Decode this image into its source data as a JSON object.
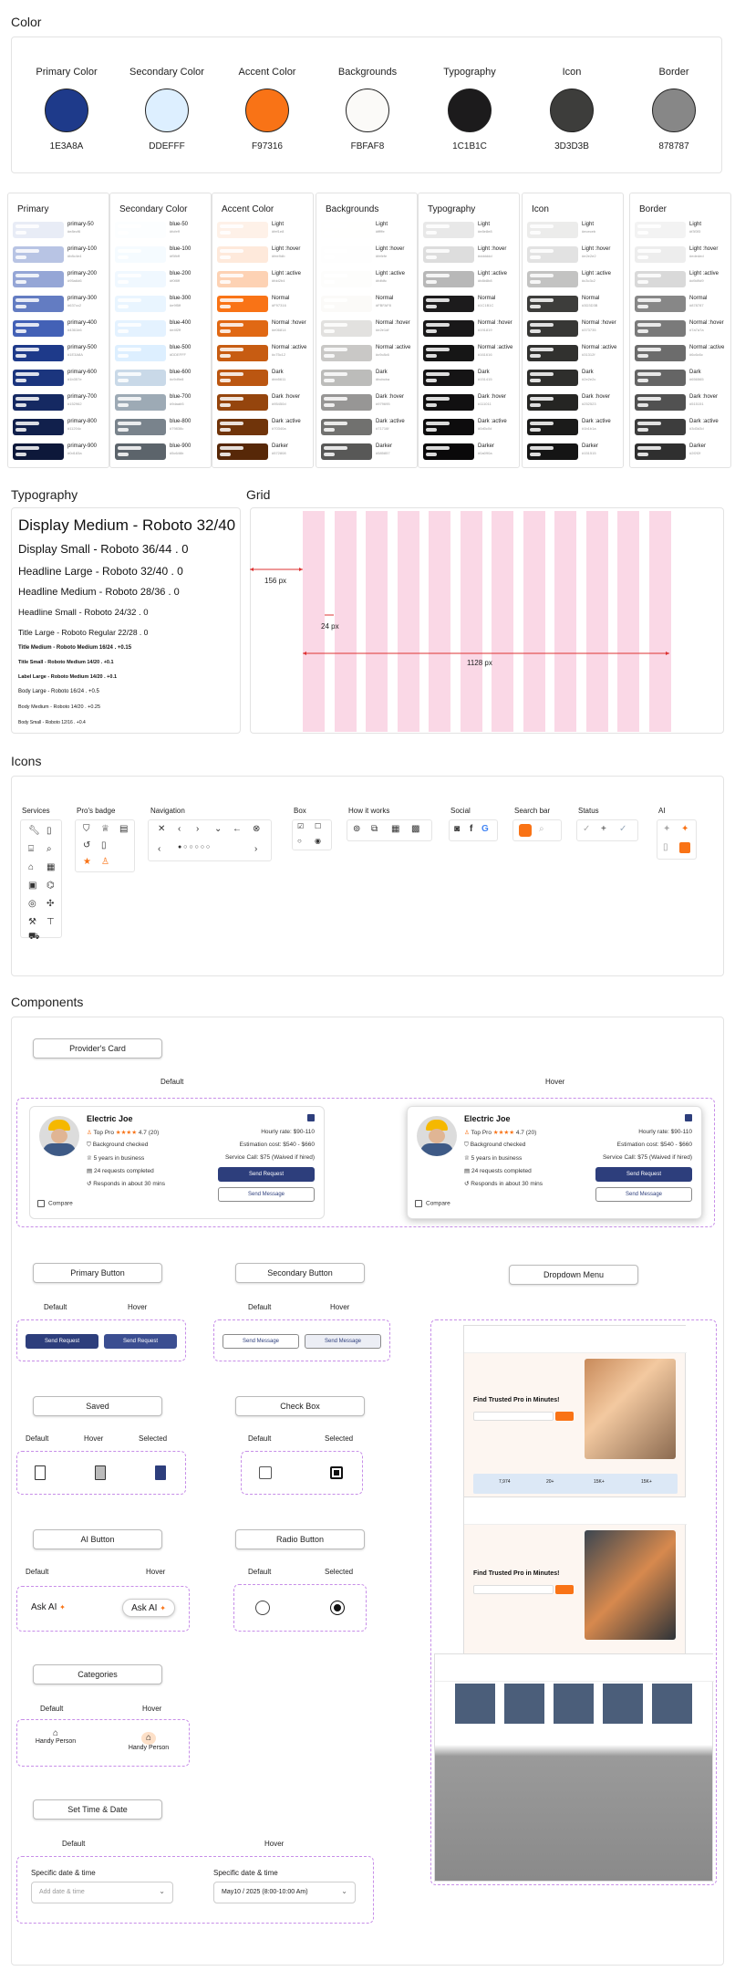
{
  "sections": {
    "color": "Color",
    "typography": "Typography",
    "grid": "Grid",
    "icons": "Icons",
    "components": "Components"
  },
  "swatches": [
    {
      "name": "Primary Color",
      "hex": "1E3A8A",
      "color": "#1E3A8A"
    },
    {
      "name": "Secondary Color",
      "hex": "DDEFFF",
      "color": "#DDEFFF"
    },
    {
      "name": "Accent Color",
      "hex": "F97316",
      "color": "#F97316"
    },
    {
      "name": "Backgrounds",
      "hex": "FBFAF8",
      "color": "#FBFAF8"
    },
    {
      "name": "Typography",
      "hex": "1C1B1C",
      "color": "#1C1B1C"
    },
    {
      "name": "Icon",
      "hex": "3D3D3B",
      "color": "#3D3D3B"
    },
    {
      "name": "Border",
      "hex": "878787",
      "color": "#878787"
    }
  ],
  "palettes": [
    {
      "title": "Primary",
      "rows": [
        {
          "label": "primary-50",
          "color": "#e8ecf6"
        },
        {
          "label": "primary-100",
          "color": "#b8c4e4"
        },
        {
          "label": "primary-200",
          "color": "#95a6d6"
        },
        {
          "label": "primary-300",
          "color": "#637cc2"
        },
        {
          "label": "primary-400",
          "color": "#4361b6"
        },
        {
          "label": "primary-500",
          "color": "#1E3A8A"
        },
        {
          "label": "primary-600",
          "color": "#1b357e"
        },
        {
          "label": "primary-700",
          "color": "#152962"
        },
        {
          "label": "primary-800",
          "color": "#11204c"
        },
        {
          "label": "primary-900",
          "color": "#0d183a"
        }
      ]
    },
    {
      "title": "Secondary Color",
      "rows": [
        {
          "label": "blue-50",
          "color": "#fcfeff"
        },
        {
          "label": "blue-100",
          "color": "#f5fbff"
        },
        {
          "label": "blue-200",
          "color": "#f0f8ff"
        },
        {
          "label": "blue-300",
          "color": "#e9f5ff"
        },
        {
          "label": "blue-400",
          "color": "#e4f2ff"
        },
        {
          "label": "blue-500",
          "color": "#DDEFFF"
        },
        {
          "label": "blue-600",
          "color": "#c9d9e8"
        },
        {
          "label": "blue-700",
          "color": "#9daab5"
        },
        {
          "label": "blue-800",
          "color": "#79838c"
        },
        {
          "label": "blue-900",
          "color": "#5c646b"
        }
      ]
    },
    {
      "title": "Accent Color",
      "rows": [
        {
          "label": "Light",
          "color": "#fef1e8"
        },
        {
          "label": "Light :hover",
          "color": "#fee9db"
        },
        {
          "label": "Light :active",
          "color": "#fdd2b4"
        },
        {
          "label": "Normal",
          "color": "#F97316"
        },
        {
          "label": "Normal :hover",
          "color": "#e06814"
        },
        {
          "label": "Normal :active",
          "color": "#c75c12"
        },
        {
          "label": "Dark",
          "color": "#bb5611"
        },
        {
          "label": "Dark :hover",
          "color": "#95450d"
        },
        {
          "label": "Dark :active",
          "color": "#70340a"
        },
        {
          "label": "Darker",
          "color": "#572808"
        }
      ]
    },
    {
      "title": "Backgrounds",
      "rows": [
        {
          "label": "Light",
          "color": "#fffffe"
        },
        {
          "label": "Light :hover",
          "color": "#fefefe"
        },
        {
          "label": "Light :active",
          "color": "#fdfdfc"
        },
        {
          "label": "Normal",
          "color": "#FBFAF8"
        },
        {
          "label": "Normal :hover",
          "color": "#e2e1df"
        },
        {
          "label": "Normal :active",
          "color": "#c9c8c6"
        },
        {
          "label": "Dark",
          "color": "#bcbcba"
        },
        {
          "label": "Dark :hover",
          "color": "#979695"
        },
        {
          "label": "Dark :active",
          "color": "#71716f"
        },
        {
          "label": "Darker",
          "color": "#585857"
        }
      ]
    },
    {
      "title": "Typography",
      "rows": [
        {
          "label": "Light",
          "color": "#e8e8e8"
        },
        {
          "label": "Light :hover",
          "color": "#dddddd"
        },
        {
          "label": "Light :active",
          "color": "#b8b8b8"
        },
        {
          "label": "Normal",
          "color": "#1C1B1C"
        },
        {
          "label": "Normal :hover",
          "color": "#191819"
        },
        {
          "label": "Normal :active",
          "color": "#161616"
        },
        {
          "label": "Dark",
          "color": "#151415"
        },
        {
          "label": "Dark :hover",
          "color": "#111011"
        },
        {
          "label": "Dark :active",
          "color": "#0d0c0d"
        },
        {
          "label": "Darker",
          "color": "#0a090a"
        }
      ]
    },
    {
      "title": "Icon",
      "rows": [
        {
          "label": "Light",
          "color": "#ececeb"
        },
        {
          "label": "Light :hover",
          "color": "#e2e2e2"
        },
        {
          "label": "Light :active",
          "color": "#c3c3c2"
        },
        {
          "label": "Normal",
          "color": "#3D3D3B"
        },
        {
          "label": "Normal :hover",
          "color": "#373735"
        },
        {
          "label": "Normal :active",
          "color": "#31312f"
        },
        {
          "label": "Dark",
          "color": "#2e2e2c"
        },
        {
          "label": "Dark :hover",
          "color": "#252523"
        },
        {
          "label": "Dark :active",
          "color": "#1b1b1a"
        },
        {
          "label": "Darker",
          "color": "#151515"
        }
      ]
    },
    {
      "title": "Border",
      "rows": [
        {
          "label": "Light",
          "color": "#f3f3f3"
        },
        {
          "label": "Light :hover",
          "color": "#ededed"
        },
        {
          "label": "Light :active",
          "color": "#d9d9d9"
        },
        {
          "label": "Normal",
          "color": "#878787"
        },
        {
          "label": "Normal :hover",
          "color": "#7a7a7a"
        },
        {
          "label": "Normal :active",
          "color": "#6c6c6c"
        },
        {
          "label": "Dark",
          "color": "#656565"
        },
        {
          "label": "Dark :hover",
          "color": "#515151"
        },
        {
          "label": "Dark :active",
          "color": "#3d3d3d"
        },
        {
          "label": "Darker",
          "color": "#2f2f2f"
        }
      ]
    }
  ],
  "typography": [
    "Display Medium - Roboto 32/40",
    "Display Small - Roboto 36/44 . 0",
    "Headline Large - Roboto 32/40 . 0",
    "Headline Medium - Roboto 28/36 . 0",
    "Headline Small - Roboto 24/32 . 0",
    "Title Large - Roboto Regular 22/28 . 0",
    "Title Medium - Roboto Medium 16/24 . +0.15",
    "Title Small - Roboto Medium 14/20 . +0.1",
    "Label Large - Roboto Medium 14/20 . +0.1",
    "Body Large - Roboto 16/24 . +0.5",
    "Body Medium - Roboto 14/20 . +0.25",
    "Body Small - Roboto 12/16 . +0.4"
  ],
  "grid": {
    "margin": "156 px",
    "gutter": "24 px",
    "width": "1128 px"
  },
  "icon_categories": [
    "Services",
    "Pro's badge",
    "Navigation",
    "Box",
    "How it works",
    "Social",
    "Search bar",
    "Status",
    "AI"
  ],
  "components": {
    "providers_card": "Provider's Card",
    "default": "Default",
    "hover": "Hover",
    "selected": "Selected",
    "card": {
      "name": "Electric Joe",
      "top_pro": "Top Pro",
      "rating": "4.7 (20)",
      "stars": "★★★★",
      "bg_checked": "Background checked",
      "years": "5 years in business",
      "requests": "24 requests completed",
      "responds": "Responds in about 30 mins",
      "compare": "Compare",
      "hourly": "Hourly rate: $90-110",
      "estimation": "Estimation cost: $540 - $660",
      "service_call": "Service Call: $75 (Waived if hired)",
      "send_request": "Send Request",
      "send_message": "Send Message"
    },
    "primary_button": "Primary Button",
    "secondary_button": "Secondary Button",
    "dropdown_menu": "Dropdown Menu",
    "saved": "Saved",
    "check_box": "Check Box",
    "ai_button": "AI Button",
    "radio_button": "Radio Button",
    "ask_ai": "Ask AI",
    "categories": "Categories",
    "handy_person": "Handy Person",
    "set_time_date": "Set Time & Date",
    "specific_dt": "Specific date & time",
    "add_dt": "Add date & time",
    "selected_dt": "May10 / 2025 (8:00-10:00 Am)",
    "hero": "Find Trusted Pro in Minutes!",
    "stats": [
      "7,974",
      "20+",
      "15K+",
      "15K+"
    ]
  }
}
